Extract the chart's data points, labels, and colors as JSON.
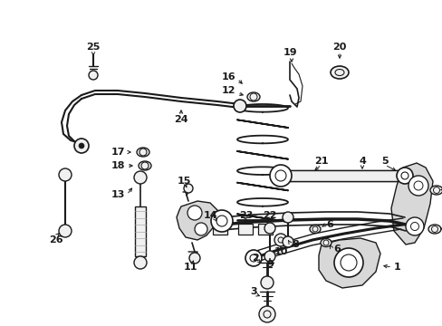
{
  "bg_color": "#ffffff",
  "fig_width": 4.89,
  "fig_height": 3.6,
  "dpi": 100,
  "dark": "#1a1a1a",
  "gray_fill": "#d8d8d8",
  "light_fill": "#f0f0f0"
}
